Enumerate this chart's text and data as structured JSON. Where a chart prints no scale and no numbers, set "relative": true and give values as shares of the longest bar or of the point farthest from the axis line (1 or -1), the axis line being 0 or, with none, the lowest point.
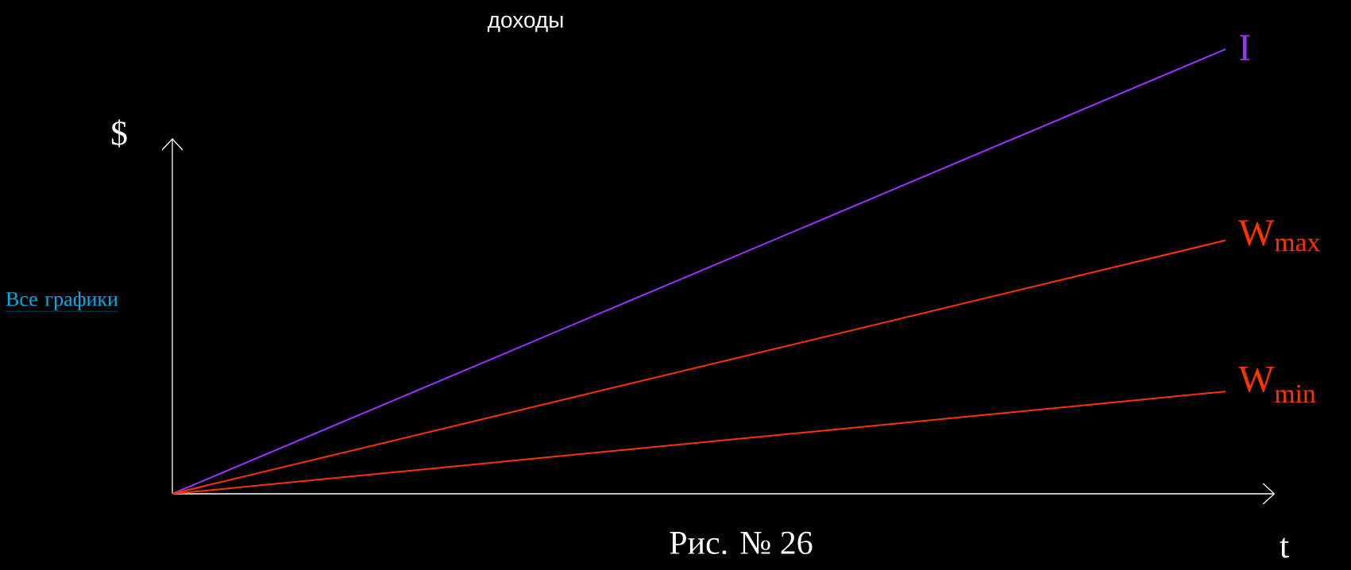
{
  "chart_data": {
    "type": "line",
    "title": "доходы",
    "xlabel": "t",
    "ylabel": "$",
    "relative": true,
    "categories": [
      null,
      null
    ],
    "series": [
      {
        "name": "I",
        "color": "#9933ff",
        "values": [
          0,
          1
        ]
      },
      {
        "name": "W$_{max}$",
        "color": "#ff3300",
        "values": [
          0,
          0.57
        ]
      },
      {
        "name": "W$_{min}$",
        "color": "#ff3300",
        "values": [
          0,
          0.23
        ]
      }
    ],
    "annotations": [
      "Все графики",
      "Рис. № 26"
    ]
  }
}
